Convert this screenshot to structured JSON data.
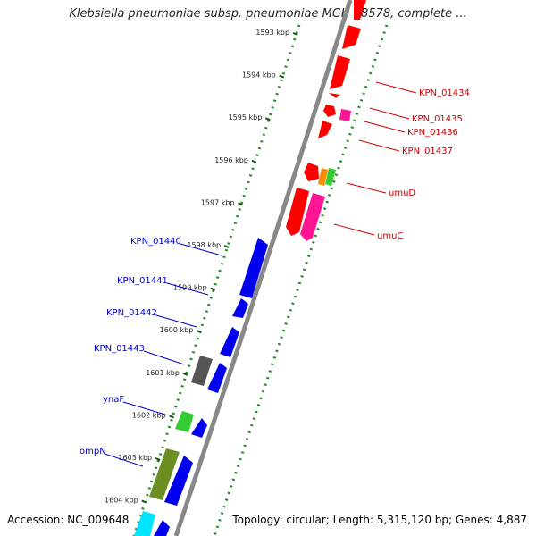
{
  "title": "Klebsiella pneumoniae subsp. pneumoniae MGH 78578, complete ...",
  "footer": {
    "accession": "Accession: NC_009648",
    "topology": "Topology: circular; Length: 5,315,120 bp; Genes: 4,887"
  },
  "ticks": [
    "1593 kbp",
    "1594 kbp",
    "1595 kbp",
    "1596 kbp",
    "1597 kbp",
    "1598 kbp",
    "1599 kbp",
    "1600 kbp",
    "1601 kbp",
    "1602 kbp",
    "1603 kbp",
    "1604 kbp"
  ],
  "colors": {
    "forward_red": "#ff0000",
    "magenta": "#ff1493",
    "orange": "#ff8c00",
    "green": "#33cc33",
    "gray": "#555555",
    "blue": "#0000ee",
    "olive": "#6b8e23",
    "cyan": "#00e5ff",
    "dot_green": "#228b22",
    "label_red": "#cc0000",
    "label_blue": "#0000cc"
  },
  "labels_right": [
    "KPN_01434",
    "KPN_01435",
    "KPN_01436",
    "KPN_01437",
    "umuD",
    "umuC"
  ],
  "labels_left": [
    "KPN_01440",
    "KPN_01441",
    "KPN_01442",
    "KPN_01443",
    "ynaF",
    "ompN"
  ]
}
